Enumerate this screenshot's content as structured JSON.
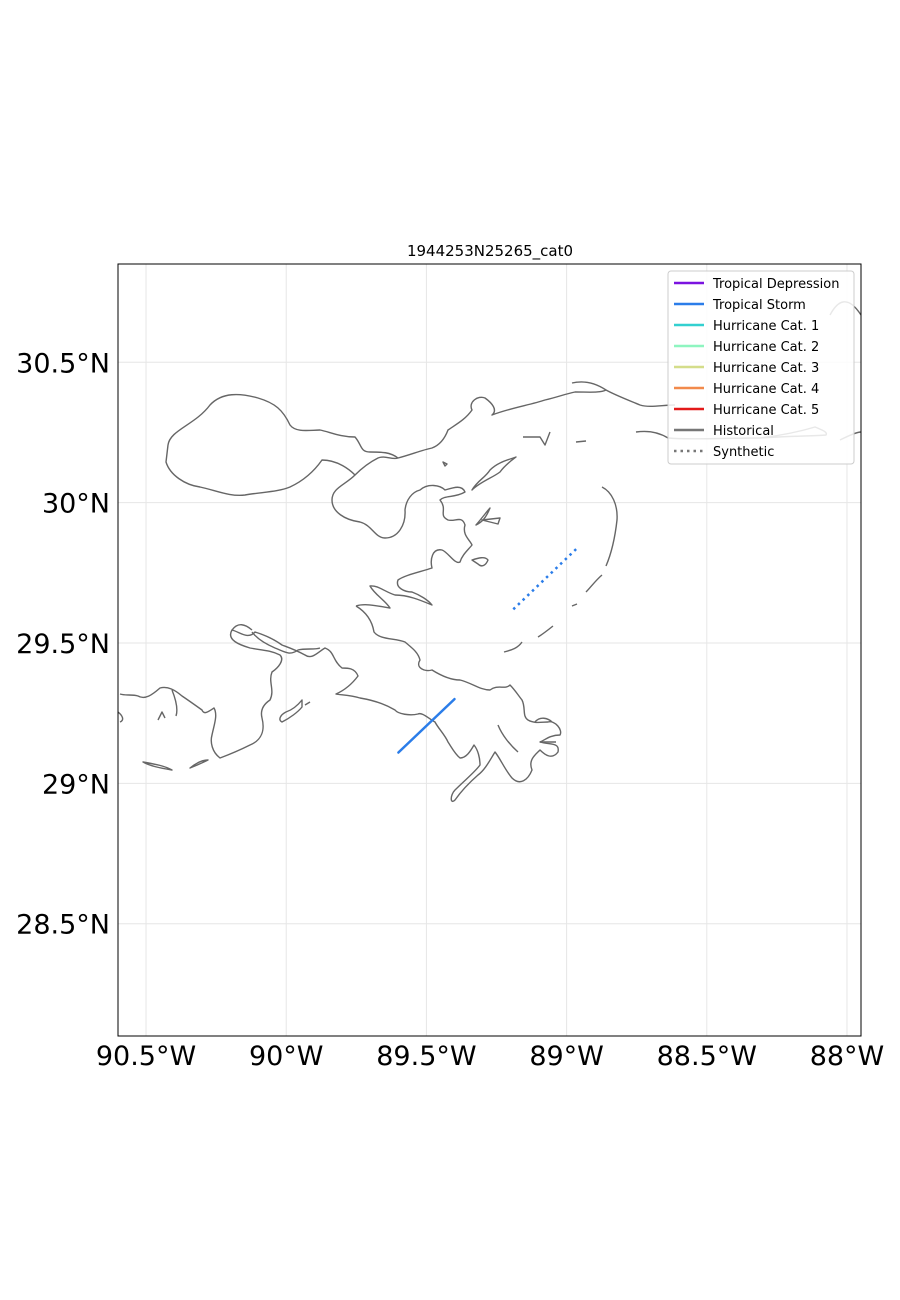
{
  "title": "1944253N25265_cat0",
  "map": {
    "lon_range": [
      -90.6,
      -87.95
    ],
    "lat_range": [
      28.1,
      30.85
    ],
    "x_ticks": [
      {
        "lon": -90.5,
        "label": "90.5°W"
      },
      {
        "lon": -90.0,
        "label": "90°W"
      },
      {
        "lon": -89.5,
        "label": "89.5°W"
      },
      {
        "lon": -89.0,
        "label": "89°W"
      },
      {
        "lon": -88.5,
        "label": "88.5°W"
      },
      {
        "lon": -88.0,
        "label": "88°W"
      }
    ],
    "y_ticks": [
      {
        "lat": 30.5,
        "label": "30.5°N"
      },
      {
        "lat": 30.0,
        "label": "30°N"
      },
      {
        "lat": 29.5,
        "label": "29.5°N"
      },
      {
        "lat": 29.0,
        "label": "29°N"
      },
      {
        "lat": 28.5,
        "label": "28.5°N"
      }
    ],
    "grid": true
  },
  "legend": {
    "placement": "top-right",
    "items": [
      {
        "label": "Tropical Depression",
        "color": "#7b13e0",
        "style": "solid"
      },
      {
        "label": "Tropical Storm",
        "color": "#2b7de9",
        "style": "solid"
      },
      {
        "label": "Hurricane Cat. 1",
        "color": "#33d0d0",
        "style": "solid"
      },
      {
        "label": "Hurricane Cat. 2",
        "color": "#8ef5c0",
        "style": "solid"
      },
      {
        "label": "Hurricane Cat. 3",
        "color": "#d4dd8a",
        "style": "solid"
      },
      {
        "label": "Hurricane Cat. 4",
        "color": "#f28a4c",
        "style": "solid"
      },
      {
        "label": "Hurricane Cat. 5",
        "color": "#e31a1a",
        "style": "solid"
      },
      {
        "label": "Historical",
        "color": "#777777",
        "style": "solid"
      },
      {
        "label": "Synthetic",
        "color": "#777777",
        "style": "dotted"
      }
    ]
  },
  "tracks": [
    {
      "type": "Historical",
      "category": "Tropical Storm",
      "color": "#2b7de9",
      "points": [
        [
          -89.6,
          29.11
        ],
        [
          -89.4,
          29.3
        ]
      ]
    },
    {
      "type": "Synthetic",
      "category": "Tropical Storm",
      "color": "#2b7de9",
      "points": [
        [
          -89.19,
          29.62
        ],
        [
          -88.96,
          29.84
        ]
      ]
    }
  ]
}
